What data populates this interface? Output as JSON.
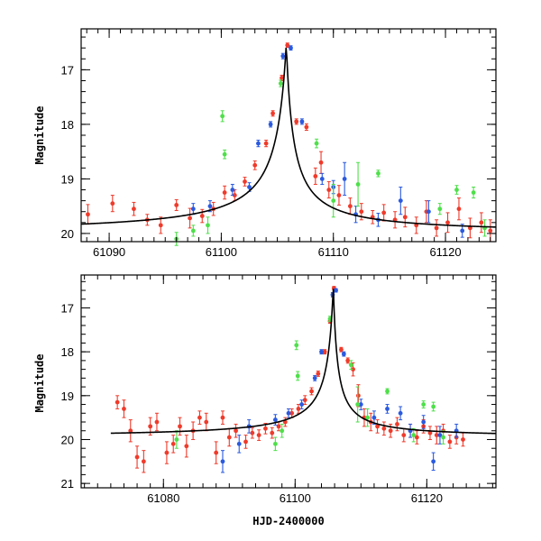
{
  "colors": {
    "red": "#f03a2a",
    "blue": "#2a5ae0",
    "green": "#4ee04a",
    "model": "#000000"
  },
  "chart_data": [
    {
      "type": "scatter",
      "name": "top-panel",
      "xlabel": "",
      "ylabel": "Magnitude",
      "xlim": [
        61087.5,
        61124.5
      ],
      "ylim": [
        20.15,
        16.25
      ],
      "x_major_ticks": [
        61090,
        61100,
        61110,
        61120
      ],
      "x_minor_step": 1,
      "y_major_ticks": [
        17,
        18,
        19,
        20
      ],
      "y_minor_step": 0.2,
      "x_tick_labels": [
        "61090",
        "61100",
        "61110",
        "61120"
      ],
      "y_tick_labels": [
        "17",
        "18",
        "19",
        "20"
      ],
      "model": {
        "t0": 61105.8,
        "peak_mag": 16.52,
        "base_mag": 20.0,
        "rise_tau": 0.95,
        "decay_tau": 0.65
      },
      "series": [
        {
          "name": "red",
          "color": "red",
          "points": [
            {
              "x": 61088.1,
              "y": 19.65,
              "err": 0.18
            },
            {
              "x": 61090.3,
              "y": 19.45,
              "err": 0.15
            },
            {
              "x": 61092.2,
              "y": 19.55,
              "err": 0.12
            },
            {
              "x": 61093.4,
              "y": 19.75,
              "err": 0.1
            },
            {
              "x": 61094.6,
              "y": 19.85,
              "err": 0.15
            },
            {
              "x": 61096.0,
              "y": 19.48,
              "err": 0.1
            },
            {
              "x": 61097.2,
              "y": 19.72,
              "err": 0.18
            },
            {
              "x": 61098.3,
              "y": 19.68,
              "err": 0.12
            },
            {
              "x": 61099.3,
              "y": 19.55,
              "err": 0.12
            },
            {
              "x": 61100.3,
              "y": 19.25,
              "err": 0.12
            },
            {
              "x": 61101.2,
              "y": 19.3,
              "err": 0.1
            },
            {
              "x": 61102.1,
              "y": 19.05,
              "err": 0.08
            },
            {
              "x": 61103.0,
              "y": 18.75,
              "err": 0.08
            },
            {
              "x": 61104.0,
              "y": 18.35,
              "err": 0.06
            },
            {
              "x": 61104.6,
              "y": 17.8,
              "err": 0.05
            },
            {
              "x": 61105.4,
              "y": 17.15,
              "err": 0.05
            },
            {
              "x": 61105.9,
              "y": 16.55,
              "err": 0.04
            },
            {
              "x": 61106.7,
              "y": 17.95,
              "err": 0.05
            },
            {
              "x": 61107.6,
              "y": 18.05,
              "err": 0.06
            },
            {
              "x": 61108.4,
              "y": 18.95,
              "err": 0.15
            },
            {
              "x": 61108.9,
              "y": 18.7,
              "err": 0.2
            },
            {
              "x": 61109.6,
              "y": 19.2,
              "err": 0.15
            },
            {
              "x": 61110.5,
              "y": 19.3,
              "err": 0.18
            },
            {
              "x": 61111.5,
              "y": 19.5,
              "err": 0.15
            },
            {
              "x": 61112.5,
              "y": 19.6,
              "err": 0.15
            },
            {
              "x": 61113.5,
              "y": 19.7,
              "err": 0.12
            },
            {
              "x": 61114.5,
              "y": 19.62,
              "err": 0.15
            },
            {
              "x": 61115.5,
              "y": 19.75,
              "err": 0.15
            },
            {
              "x": 61116.4,
              "y": 19.7,
              "err": 0.18
            },
            {
              "x": 61117.4,
              "y": 19.85,
              "err": 0.15
            },
            {
              "x": 61118.3,
              "y": 19.6,
              "err": 0.2
            },
            {
              "x": 61119.2,
              "y": 19.9,
              "err": 0.15
            },
            {
              "x": 61120.2,
              "y": 19.8,
              "err": 0.18
            },
            {
              "x": 61121.2,
              "y": 19.55,
              "err": 0.2
            },
            {
              "x": 61122.2,
              "y": 19.9,
              "err": 0.18
            },
            {
              "x": 61123.2,
              "y": 19.8,
              "err": 0.18
            },
            {
              "x": 61124.0,
              "y": 19.95,
              "err": 0.2
            }
          ]
        },
        {
          "name": "blue",
          "color": "blue",
          "points": [
            {
              "x": 61097.5,
              "y": 19.55,
              "err": 0.1
            },
            {
              "x": 61099.0,
              "y": 19.5,
              "err": 0.1
            },
            {
              "x": 61101.0,
              "y": 19.2,
              "err": 0.1
            },
            {
              "x": 61102.5,
              "y": 19.15,
              "err": 0.08
            },
            {
              "x": 61103.3,
              "y": 18.35,
              "err": 0.06
            },
            {
              "x": 61104.4,
              "y": 18.0,
              "err": 0.05
            },
            {
              "x": 61105.5,
              "y": 16.75,
              "err": 0.05
            },
            {
              "x": 61106.2,
              "y": 16.6,
              "err": 0.04
            },
            {
              "x": 61107.2,
              "y": 17.95,
              "err": 0.05
            },
            {
              "x": 61109.0,
              "y": 19.0,
              "err": 0.1
            },
            {
              "x": 61110.0,
              "y": 19.15,
              "err": 0.12
            },
            {
              "x": 61111.0,
              "y": 19.0,
              "err": 0.3
            },
            {
              "x": 61112.0,
              "y": 19.65,
              "err": 0.15
            },
            {
              "x": 61114.0,
              "y": 19.75,
              "err": 0.12
            },
            {
              "x": 61116.0,
              "y": 19.4,
              "err": 0.25
            },
            {
              "x": 61118.5,
              "y": 19.6,
              "err": 0.2
            },
            {
              "x": 61121.5,
              "y": 19.95,
              "err": 0.12
            }
          ]
        },
        {
          "name": "green",
          "color": "green",
          "points": [
            {
              "x": 61096.0,
              "y": 20.1,
              "err": 0.12
            },
            {
              "x": 61097.5,
              "y": 19.95,
              "err": 0.1
            },
            {
              "x": 61098.8,
              "y": 19.85,
              "err": 0.15
            },
            {
              "x": 61100.1,
              "y": 17.85,
              "err": 0.1
            },
            {
              "x": 61100.3,
              "y": 18.55,
              "err": 0.08
            },
            {
              "x": 61105.3,
              "y": 17.25,
              "err": 0.06
            },
            {
              "x": 61108.5,
              "y": 18.35,
              "err": 0.08
            },
            {
              "x": 61110.0,
              "y": 19.4,
              "err": 0.3
            },
            {
              "x": 61112.2,
              "y": 19.1,
              "err": 0.4
            },
            {
              "x": 61114.0,
              "y": 18.9,
              "err": 0.06
            },
            {
              "x": 61119.5,
              "y": 19.55,
              "err": 0.1
            },
            {
              "x": 61121.0,
              "y": 19.2,
              "err": 0.08
            },
            {
              "x": 61122.5,
              "y": 19.25,
              "err": 0.1
            },
            {
              "x": 61123.5,
              "y": 19.9,
              "err": 0.15
            }
          ]
        }
      ]
    },
    {
      "type": "scatter",
      "name": "bottom-panel",
      "xlabel": "HJD-2400000",
      "ylabel": "Magnitude",
      "xlim": [
        61067.5,
        61130.5
      ],
      "ylim": [
        21.1,
        16.25
      ],
      "x_major_ticks": [
        61080,
        61100,
        61120
      ],
      "x_minor_step": 2,
      "y_major_ticks": [
        17,
        18,
        19,
        20,
        21
      ],
      "y_minor_step": 0.2,
      "x_tick_labels": [
        "61080",
        "61100",
        "61120"
      ],
      "y_tick_labels": [
        "17",
        "18",
        "19",
        "20",
        "21"
      ],
      "model": {
        "t0": 61105.8,
        "peak_mag": 16.5,
        "base_mag": 19.95,
        "rise_tau": 0.95,
        "decay_tau": 0.65,
        "x_start": 61072,
        "x_end": 61130.5
      },
      "series": [
        {
          "name": "red",
          "color": "red",
          "points": [
            {
              "x": 61073.0,
              "y": 19.15,
              "err": 0.15
            },
            {
              "x": 61074.0,
              "y": 19.3,
              "err": 0.2
            },
            {
              "x": 61075.0,
              "y": 19.8,
              "err": 0.25
            },
            {
              "x": 61076.0,
              "y": 20.4,
              "err": 0.25
            },
            {
              "x": 61077.0,
              "y": 20.5,
              "err": 0.25
            },
            {
              "x": 61078.0,
              "y": 19.7,
              "err": 0.2
            },
            {
              "x": 61079.0,
              "y": 19.6,
              "err": 0.2
            },
            {
              "x": 61080.5,
              "y": 20.3,
              "err": 0.25
            },
            {
              "x": 61081.5,
              "y": 20.1,
              "err": 0.2
            },
            {
              "x": 61082.5,
              "y": 19.7,
              "err": 0.2
            },
            {
              "x": 61083.5,
              "y": 20.15,
              "err": 0.25
            },
            {
              "x": 61084.5,
              "y": 19.8,
              "err": 0.2
            },
            {
              "x": 61085.5,
              "y": 19.5,
              "err": 0.15
            },
            {
              "x": 61086.5,
              "y": 19.6,
              "err": 0.2
            },
            {
              "x": 61088.0,
              "y": 20.3,
              "err": 0.25
            },
            {
              "x": 61089.0,
              "y": 19.5,
              "err": 0.15
            },
            {
              "x": 61090.0,
              "y": 19.95,
              "err": 0.2
            },
            {
              "x": 61091.0,
              "y": 19.8,
              "err": 0.15
            },
            {
              "x": 61092.5,
              "y": 20.05,
              "err": 0.15
            },
            {
              "x": 61093.5,
              "y": 19.85,
              "err": 0.12
            },
            {
              "x": 61094.5,
              "y": 19.9,
              "err": 0.12
            },
            {
              "x": 61095.5,
              "y": 19.75,
              "err": 0.12
            },
            {
              "x": 61096.5,
              "y": 19.85,
              "err": 0.12
            },
            {
              "x": 61097.5,
              "y": 19.7,
              "err": 0.1
            },
            {
              "x": 61098.5,
              "y": 19.6,
              "err": 0.1
            },
            {
              "x": 61099.5,
              "y": 19.4,
              "err": 0.1
            },
            {
              "x": 61100.5,
              "y": 19.3,
              "err": 0.1
            },
            {
              "x": 61101.5,
              "y": 19.1,
              "err": 0.1
            },
            {
              "x": 61102.5,
              "y": 18.9,
              "err": 0.08
            },
            {
              "x": 61103.5,
              "y": 18.5,
              "err": 0.06
            },
            {
              "x": 61104.5,
              "y": 18.0,
              "err": 0.05
            },
            {
              "x": 61105.3,
              "y": 17.3,
              "err": 0.05
            },
            {
              "x": 61105.9,
              "y": 16.55,
              "err": 0.04
            },
            {
              "x": 61107.0,
              "y": 17.95,
              "err": 0.05
            },
            {
              "x": 61108.0,
              "y": 18.2,
              "err": 0.06
            },
            {
              "x": 61108.8,
              "y": 18.4,
              "err": 0.15
            },
            {
              "x": 61109.6,
              "y": 19.0,
              "err": 0.25
            },
            {
              "x": 61110.5,
              "y": 19.5,
              "err": 0.2
            },
            {
              "x": 61111.5,
              "y": 19.6,
              "err": 0.2
            },
            {
              "x": 61112.5,
              "y": 19.7,
              "err": 0.15
            },
            {
              "x": 61113.5,
              "y": 19.75,
              "err": 0.15
            },
            {
              "x": 61114.5,
              "y": 19.8,
              "err": 0.15
            },
            {
              "x": 61115.5,
              "y": 19.65,
              "err": 0.15
            },
            {
              "x": 61116.5,
              "y": 19.9,
              "err": 0.15
            },
            {
              "x": 61117.5,
              "y": 19.8,
              "err": 0.15
            },
            {
              "x": 61118.5,
              "y": 19.95,
              "err": 0.15
            },
            {
              "x": 61119.5,
              "y": 19.7,
              "err": 0.15
            },
            {
              "x": 61120.5,
              "y": 19.85,
              "err": 0.15
            },
            {
              "x": 61121.5,
              "y": 19.9,
              "err": 0.2
            },
            {
              "x": 61122.5,
              "y": 19.8,
              "err": 0.15
            },
            {
              "x": 61123.5,
              "y": 20.05,
              "err": 0.15
            },
            {
              "x": 61124.5,
              "y": 19.95,
              "err": 0.15
            },
            {
              "x": 61125.5,
              "y": 20.0,
              "err": 0.15
            }
          ]
        },
        {
          "name": "blue",
          "color": "blue",
          "points": [
            {
              "x": 61089.0,
              "y": 20.5,
              "err": 0.25
            },
            {
              "x": 61091.5,
              "y": 20.1,
              "err": 0.2
            },
            {
              "x": 61093.0,
              "y": 19.7,
              "err": 0.15
            },
            {
              "x": 61097.0,
              "y": 19.55,
              "err": 0.12
            },
            {
              "x": 61099.0,
              "y": 19.4,
              "err": 0.1
            },
            {
              "x": 61101.0,
              "y": 19.2,
              "err": 0.1
            },
            {
              "x": 61103.0,
              "y": 18.6,
              "err": 0.06
            },
            {
              "x": 61104.0,
              "y": 18.0,
              "err": 0.05
            },
            {
              "x": 61105.7,
              "y": 16.7,
              "err": 0.05
            },
            {
              "x": 61106.2,
              "y": 16.6,
              "err": 0.04
            },
            {
              "x": 61107.4,
              "y": 18.05,
              "err": 0.05
            },
            {
              "x": 61110.0,
              "y": 19.2,
              "err": 0.12
            },
            {
              "x": 61112.0,
              "y": 19.5,
              "err": 0.15
            },
            {
              "x": 61114.0,
              "y": 19.3,
              "err": 0.1
            },
            {
              "x": 61116.0,
              "y": 19.4,
              "err": 0.15
            },
            {
              "x": 61117.5,
              "y": 19.8,
              "err": 0.15
            },
            {
              "x": 61119.5,
              "y": 19.6,
              "err": 0.15
            },
            {
              "x": 61121.0,
              "y": 20.5,
              "err": 0.2
            },
            {
              "x": 61122.0,
              "y": 19.9,
              "err": 0.2
            },
            {
              "x": 61124.5,
              "y": 19.8,
              "err": 0.15
            }
          ]
        },
        {
          "name": "green",
          "color": "green",
          "points": [
            {
              "x": 61082.0,
              "y": 20.0,
              "err": 0.2
            },
            {
              "x": 61097.0,
              "y": 20.1,
              "err": 0.15
            },
            {
              "x": 61098.0,
              "y": 19.8,
              "err": 0.15
            },
            {
              "x": 61100.2,
              "y": 17.85,
              "err": 0.1
            },
            {
              "x": 61100.4,
              "y": 18.55,
              "err": 0.1
            },
            {
              "x": 61105.3,
              "y": 17.25,
              "err": 0.06
            },
            {
              "x": 61108.5,
              "y": 18.3,
              "err": 0.1
            },
            {
              "x": 61109.5,
              "y": 19.2,
              "err": 0.4
            },
            {
              "x": 61111.0,
              "y": 19.5,
              "err": 0.2
            },
            {
              "x": 61114.0,
              "y": 18.9,
              "err": 0.06
            },
            {
              "x": 61118.0,
              "y": 19.9,
              "err": 0.15
            },
            {
              "x": 61119.5,
              "y": 19.2,
              "err": 0.08
            },
            {
              "x": 61121.0,
              "y": 19.25,
              "err": 0.1
            },
            {
              "x": 61122.5,
              "y": 19.95,
              "err": 0.15
            }
          ]
        }
      ]
    }
  ]
}
